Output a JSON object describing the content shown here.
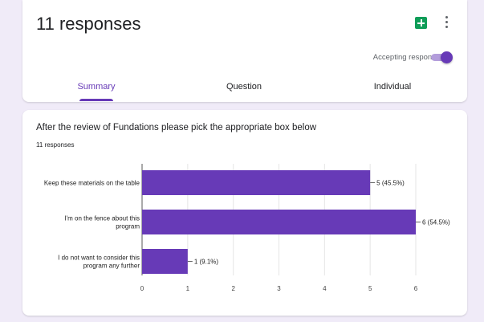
{
  "header": {
    "title": "11 responses",
    "accepting_label": "Accepting responses",
    "accepting": true
  },
  "tabs": [
    {
      "label": "Summary",
      "active": true
    },
    {
      "label": "Question",
      "active": false
    },
    {
      "label": "Individual",
      "active": false
    }
  ],
  "question": {
    "title": "After the review of Fundations please pick the appropriate box below",
    "response_count": "11 responses"
  },
  "colors": {
    "accent": "#673ab7",
    "sheets": "#0f9d58"
  },
  "chart_data": {
    "type": "bar",
    "orientation": "horizontal",
    "categories": [
      [
        "Keep these materials on the table"
      ],
      [
        "I'm on the fence about this",
        "program"
      ],
      [
        "I do not want to consider this",
        "program any further"
      ]
    ],
    "values": [
      5,
      6,
      1
    ],
    "data_labels": [
      "5 (45.5%)",
      "6 (54.5%)",
      "1 (9.1%)"
    ],
    "xlim": [
      0,
      6
    ],
    "xticks": [
      0,
      1,
      2,
      3,
      4,
      5,
      6
    ],
    "color": "#673ab7"
  }
}
